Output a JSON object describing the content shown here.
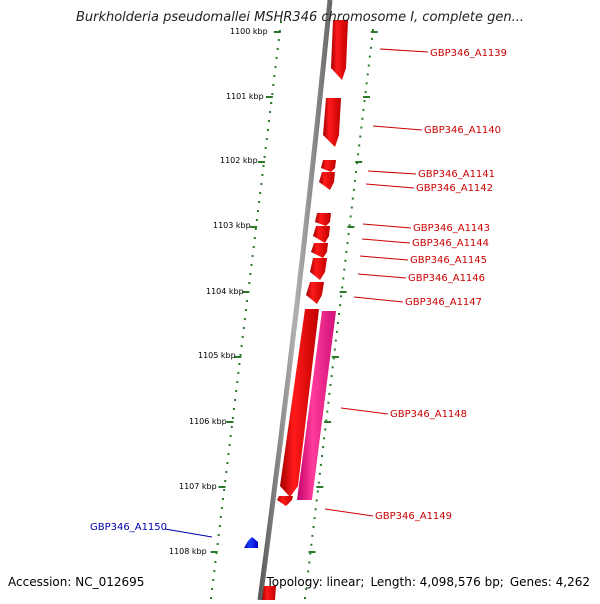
{
  "title": "Burkholderia pseudomallei MSHR346 chromosome I, complete gen...",
  "accession": "Accession: NC_012695",
  "topology": "Topology: linear;",
  "length": "Length: 4,098,576 bp;",
  "genes": "Genes: 4,262",
  "kbp_labels": [
    "1100 kbp",
    "1101 kbp",
    "1102 kbp",
    "1103 kbp",
    "1104 kbp",
    "1105 kbp",
    "1106 kbp",
    "1107 kbp",
    "1108 kbp"
  ],
  "genes_list": [
    {
      "label": "GBP346_A1139",
      "strand": "+"
    },
    {
      "label": "GBP346_A1140",
      "strand": "+"
    },
    {
      "label": "GBP346_A1141",
      "strand": "+"
    },
    {
      "label": "GBP346_A1142",
      "strand": "+"
    },
    {
      "label": "GBP346_A1143",
      "strand": "+"
    },
    {
      "label": "GBP346_A1144",
      "strand": "+"
    },
    {
      "label": "GBP346_A1145",
      "strand": "+"
    },
    {
      "label": "GBP346_A1146",
      "strand": "+"
    },
    {
      "label": "GBP346_A1147",
      "strand": "+"
    },
    {
      "label": "GBP346_A1148",
      "strand": "+"
    },
    {
      "label": "GBP346_A1149",
      "strand": "+"
    },
    {
      "label": "GBP346_A1150",
      "strand": "-"
    }
  ],
  "colors": {
    "forward_gene": "#ff0000",
    "rrna_gene": "#ff2a8a",
    "reverse_gene": "#0000ff",
    "forward_label": "#cc0000",
    "reverse_label": "#0000aa",
    "backbone": "#8a8a8a",
    "ruler": "#2a7a2a"
  }
}
